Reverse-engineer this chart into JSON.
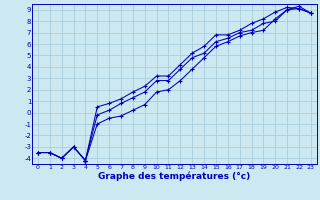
{
  "xlabel": "Graphe des températures (°c)",
  "bg_color": "#cce8f0",
  "grid_color": "#a0c8d8",
  "line_color": "#0000bb",
  "xlim": [
    -0.5,
    23.5
  ],
  "ylim": [
    -4.5,
    9.5
  ],
  "xticks": [
    0,
    1,
    2,
    3,
    4,
    5,
    6,
    7,
    8,
    9,
    10,
    11,
    12,
    13,
    14,
    15,
    16,
    17,
    18,
    19,
    20,
    21,
    22,
    23
  ],
  "yticks": [
    -4,
    -3,
    -2,
    -1,
    0,
    1,
    2,
    3,
    4,
    5,
    6,
    7,
    8,
    9
  ],
  "line1_x": [
    0,
    1,
    2,
    3,
    4,
    4,
    5,
    6,
    7,
    8,
    9,
    10,
    11,
    12,
    13,
    14,
    15,
    16,
    17,
    18,
    19,
    20,
    21,
    22,
    23
  ],
  "line1_y": [
    -3.5,
    -3.5,
    -4.0,
    -3.0,
    -4.2,
    -4.2,
    -1.0,
    -0.5,
    -0.3,
    0.2,
    0.7,
    1.8,
    2.0,
    2.8,
    3.8,
    4.8,
    5.8,
    6.2,
    6.7,
    7.0,
    7.2,
    8.2,
    9.0,
    9.1,
    8.7
  ],
  "line2_x": [
    0,
    1,
    2,
    3,
    4,
    4,
    5,
    6,
    7,
    8,
    9,
    10,
    11,
    12,
    13,
    14,
    15,
    16,
    17,
    18,
    19,
    20,
    21,
    22,
    23
  ],
  "line2_y": [
    -3.5,
    -3.5,
    -4.0,
    -3.0,
    -4.2,
    -4.2,
    0.5,
    0.8,
    1.2,
    1.8,
    2.3,
    3.2,
    3.2,
    4.2,
    5.2,
    5.8,
    6.8,
    6.8,
    7.2,
    7.8,
    8.2,
    8.8,
    9.2,
    9.1,
    8.7
  ],
  "line3_x": [
    0,
    1,
    2,
    3,
    4,
    5,
    6,
    7,
    8,
    9,
    10,
    11,
    12,
    13,
    14,
    15,
    16,
    17,
    18,
    19,
    20,
    21,
    22,
    23
  ],
  "line3_y": [
    -3.5,
    -3.5,
    -4.0,
    -3.0,
    -4.2,
    -0.2,
    0.2,
    0.8,
    1.3,
    1.8,
    2.8,
    2.8,
    3.8,
    4.8,
    5.2,
    6.2,
    6.5,
    7.0,
    7.2,
    7.8,
    8.0,
    9.0,
    9.3,
    8.7
  ]
}
